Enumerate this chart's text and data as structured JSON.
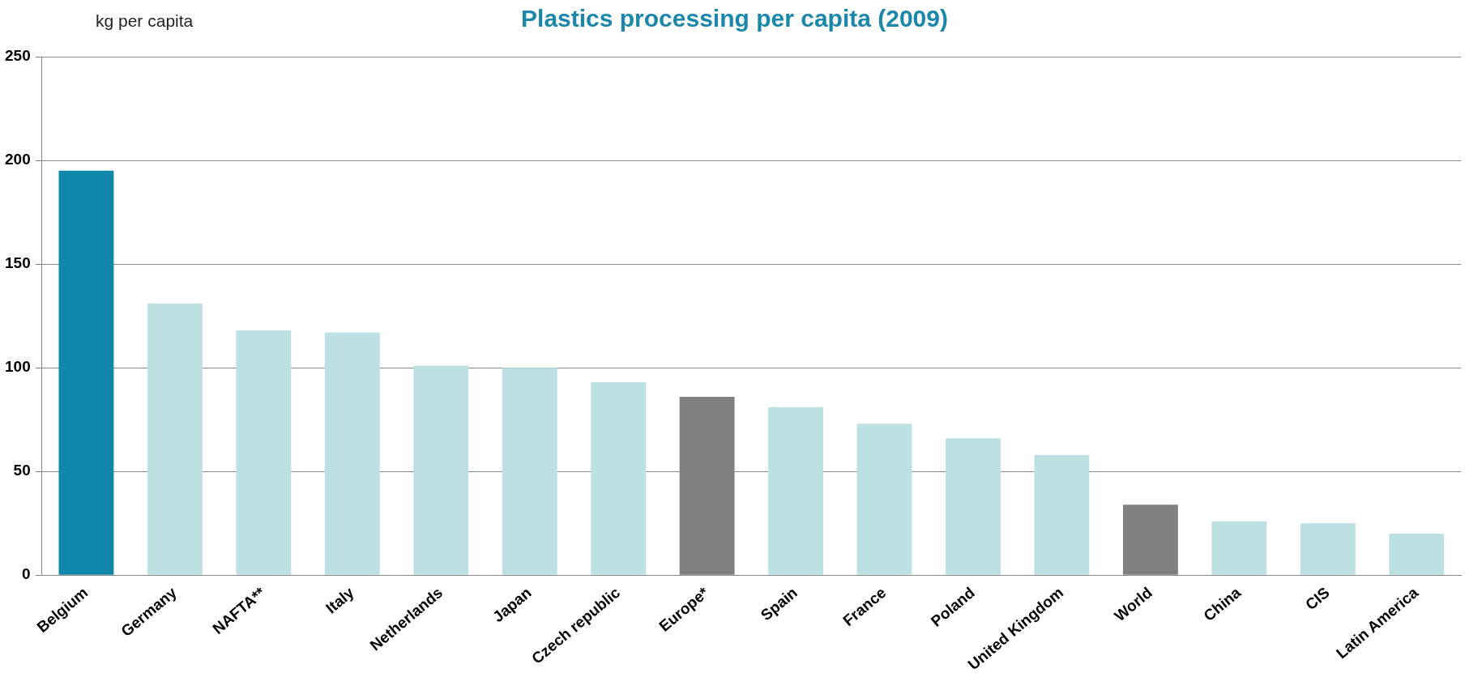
{
  "chart_data": {
    "type": "bar",
    "title": "Plastics processing per capita (2009)",
    "ylabel": "kg per capita",
    "categories": [
      "Belgium",
      "Germany",
      "NAFTA**",
      "Italy",
      "Netherlands",
      "Japan",
      "Czech republic",
      "Europe*",
      "Spain",
      "France",
      "Poland",
      "United Kingdom",
      "World",
      "China",
      "CIS",
      "Latin America"
    ],
    "values": [
      195,
      131,
      118,
      117,
      101,
      100,
      93,
      86,
      81,
      73,
      66,
      58,
      34,
      26,
      25,
      20
    ],
    "colors": [
      "#1087ab",
      "#bde0e3",
      "#bde0e3",
      "#bde0e3",
      "#bde0e3",
      "#bde0e3",
      "#bde0e3",
      "#808080",
      "#bde0e3",
      "#bde0e3",
      "#bde0e3",
      "#bde0e3",
      "#808080",
      "#bde0e3",
      "#bde0e3",
      "#bde0e3"
    ],
    "ylim": [
      0,
      250
    ],
    "yticks": [
      0,
      50,
      100,
      150,
      200,
      250
    ],
    "grid": "y",
    "legend": false
  }
}
